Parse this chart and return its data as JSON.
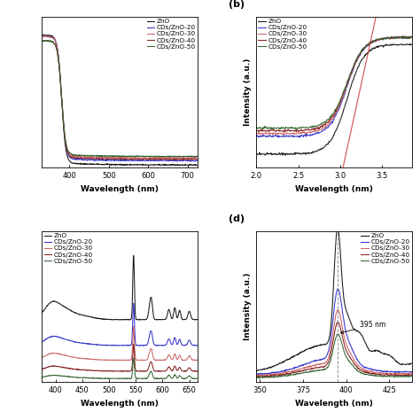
{
  "legend_labels": [
    "ZnO",
    "CDs/ZnO-20",
    "CDs/ZnO-30",
    "CDs/ZnO-40",
    "CDs/ZnO-50"
  ],
  "colors": [
    "#1a1a1a",
    "#3333cc",
    "#cc6666",
    "#882222",
    "#336633"
  ],
  "subplot_a": {
    "xlabel": "Wavelength (nm)",
    "xlim": [
      330,
      725
    ],
    "xticks": [
      400,
      500,
      600,
      700
    ]
  },
  "subplot_b": {
    "xlabel": "Wavelength (nm)",
    "ylabel": "Intensity (a.u.)",
    "xlim": [
      2.0,
      3.85
    ],
    "xticks": [
      2.0,
      2.5,
      3.0,
      3.5
    ],
    "label": "(b)"
  },
  "subplot_c": {
    "xlabel": "Wavelength (nm)",
    "xlim": [
      375,
      665
    ],
    "xticks": [
      400,
      450,
      500,
      550,
      600,
      650
    ]
  },
  "subplot_d": {
    "xlabel": "Wavelength (nm)",
    "ylabel": "Intensity (a.u.)",
    "xlim": [
      348,
      438
    ],
    "xticks": [
      350,
      375,
      400,
      425
    ],
    "annotation": "395 nm",
    "label": "(d)"
  }
}
